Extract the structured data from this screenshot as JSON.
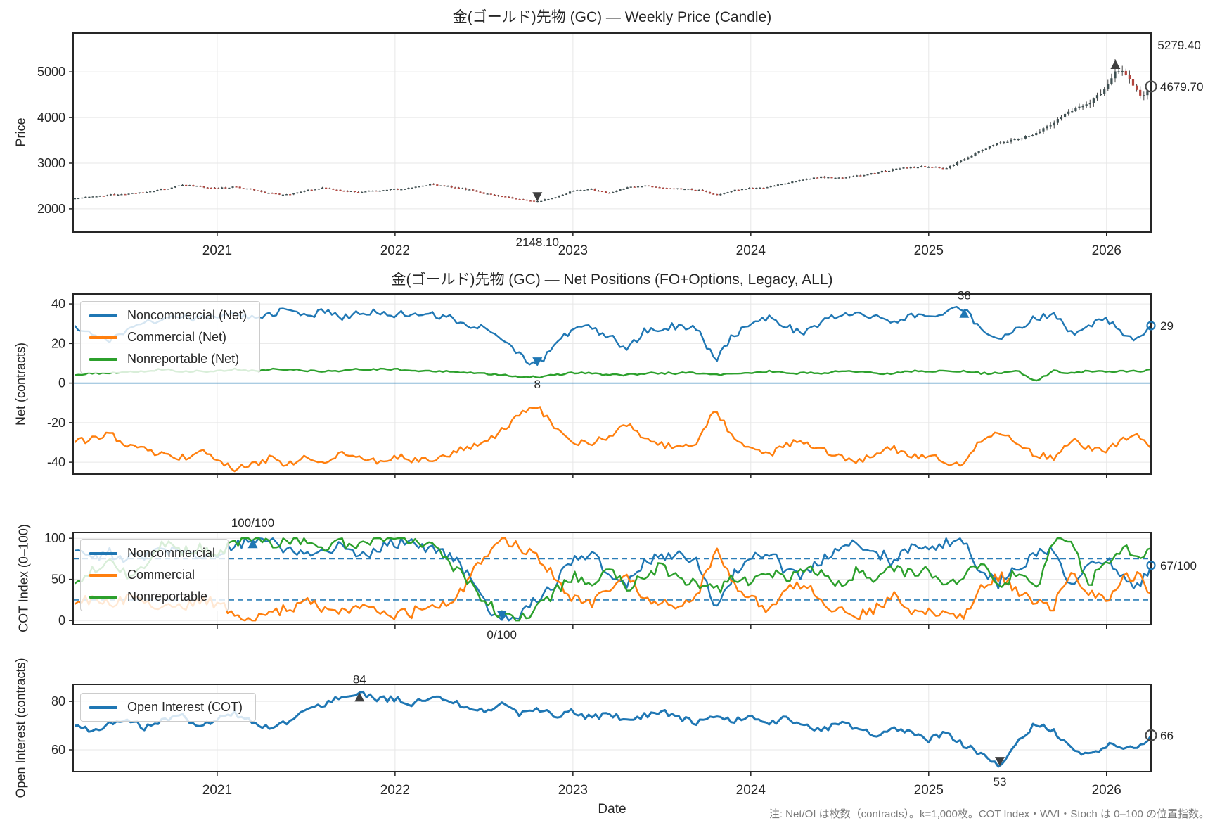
{
  "page": {
    "note": "注: Net/OI は枚数（contracts）。k=1,000枚。COT Index・WVI・Stoch は 0–100 の位置指数。"
  },
  "colors": {
    "noncommercial": "#1f77b4",
    "commercial": "#ff7f0e",
    "nonreportable": "#2ca02c",
    "open_interest": "#1f77b4",
    "candle_up": "#3f5052",
    "candle_down": "#b2453e",
    "wick": "#454545",
    "grid": "#e7e7e7",
    "spine": "#262626",
    "ann_gray": "#757575",
    "ann_blue": "#4f94c9",
    "marker_dark": "#3f3f3f",
    "marker_blue": "#1f77b4"
  },
  "axis": {
    "xlim": [
      2020.19,
      2026.25
    ],
    "xticks": [
      2021,
      2022,
      2023,
      2024,
      2025,
      2026
    ],
    "xtick_labels": [
      "2021",
      "2022",
      "2023",
      "2024",
      "2025",
      "2026"
    ]
  },
  "anchor_x": [
    2020.2,
    2020.3,
    2020.4,
    2020.5,
    2020.6,
    2020.7,
    2020.8,
    2020.9,
    2021.0,
    2021.1,
    2021.2,
    2021.3,
    2021.4,
    2021.5,
    2021.6,
    2021.7,
    2021.8,
    2021.9,
    2022.0,
    2022.1,
    2022.2,
    2022.3,
    2022.4,
    2022.5,
    2022.6,
    2022.7,
    2022.8,
    2022.9,
    2023.0,
    2023.1,
    2023.2,
    2023.3,
    2023.4,
    2023.5,
    2023.6,
    2023.7,
    2023.8,
    2023.9,
    2024.0,
    2024.1,
    2024.2,
    2024.3,
    2024.4,
    2024.5,
    2024.6,
    2024.7,
    2024.8,
    2024.9,
    2025.0,
    2025.1,
    2025.2,
    2025.3,
    2025.4,
    2025.5,
    2025.6,
    2025.7,
    2025.8,
    2025.9,
    2026.0,
    2026.05,
    2026.1,
    2026.15,
    2026.2,
    2026.25
  ],
  "chart_data": [
    {
      "id": "price",
      "type": "candlestick",
      "title": "金(ゴールド)先物 (GC) — Weekly Price (Candle)",
      "ylabel": "Price",
      "ylim": [
        1490,
        5850
      ],
      "yticks": [
        2000,
        3000,
        4000,
        5000
      ],
      "show_xticklabels": true,
      "closes": [
        2230,
        2270,
        2310,
        2330,
        2370,
        2430,
        2520,
        2490,
        2450,
        2480,
        2420,
        2330,
        2310,
        2400,
        2460,
        2400,
        2370,
        2400,
        2430,
        2460,
        2540,
        2490,
        2430,
        2340,
        2270,
        2210,
        2160,
        2260,
        2390,
        2430,
        2350,
        2460,
        2510,
        2470,
        2440,
        2420,
        2300,
        2410,
        2450,
        2480,
        2560,
        2650,
        2700,
        2670,
        2720,
        2790,
        2860,
        2910,
        2930,
        2890,
        3080,
        3300,
        3460,
        3520,
        3650,
        3880,
        4150,
        4320,
        4650,
        5050,
        5000,
        4700,
        4450,
        4679.7
      ],
      "annotations": [
        {
          "label": "5279.40",
          "x": 2026.05,
          "y": 5279.4,
          "pos": "topright",
          "marker": "tri-up",
          "color": "gray",
          "marker_color": "dark"
        },
        {
          "label": "4679.70",
          "x": "end",
          "y": 4679.7,
          "pos": "right",
          "marker": "circle",
          "color": "gray",
          "marker_color": "dark"
        },
        {
          "label": "2148.10",
          "x": 2022.8,
          "y": 2148.1,
          "pos": "below-frame",
          "marker": "tri-down",
          "color": "gray",
          "marker_color": "dark"
        }
      ]
    },
    {
      "id": "net",
      "type": "line",
      "title": "金(ゴールド)先物 (GC) — Net Positions (FO+Options, Legacy, ALL)",
      "ylabel": "Net (contracts)",
      "ylim": [
        -46,
        45
      ],
      "yticks": [
        -40,
        -20,
        0,
        20,
        40
      ],
      "zero_line": true,
      "series": [
        {
          "name": "Noncommercial (Net)",
          "color": "noncommercial",
          "jitter": 1.8,
          "values": [
            29,
            25,
            22,
            27,
            30,
            33,
            35,
            32,
            34,
            36,
            33,
            35,
            37,
            34,
            36,
            33,
            35,
            36,
            34,
            36,
            35,
            33,
            30,
            28,
            22,
            14,
            8,
            20,
            27,
            28,
            24,
            17,
            26,
            28,
            29,
            27,
            11,
            24,
            30,
            33,
            28,
            26,
            31,
            34,
            36,
            33,
            30,
            35,
            33,
            37,
            38,
            25,
            22,
            28,
            33,
            35,
            25,
            30,
            32,
            28,
            25,
            23,
            24,
            29
          ]
        },
        {
          "name": "Commercial (Net)",
          "color": "commercial",
          "jitter": 1.8,
          "values": [
            -30,
            -28,
            -26,
            -31,
            -34,
            -36,
            -38,
            -34,
            -40,
            -44,
            -41,
            -38,
            -41,
            -37,
            -39,
            -36,
            -38,
            -39,
            -37,
            -39,
            -38,
            -36,
            -33,
            -30,
            -24,
            -16,
            -11,
            -23,
            -30,
            -31,
            -27,
            -20,
            -29,
            -31,
            -32,
            -30,
            -13,
            -27,
            -33,
            -36,
            -31,
            -29,
            -34,
            -37,
            -39,
            -36,
            -33,
            -38,
            -36,
            -40,
            -41,
            -28,
            -25,
            -31,
            -36,
            -38,
            -28,
            -33,
            -35,
            -31,
            -28,
            -26,
            -27,
            -33
          ]
        },
        {
          "name": "Nonreportable (Net)",
          "color": "nonreportable",
          "jitter": 0.5,
          "values": [
            4,
            5,
            5,
            6,
            6,
            7,
            6,
            6,
            6,
            7,
            6,
            7,
            7,
            6,
            6,
            6,
            7,
            7,
            7,
            6,
            6,
            6,
            5,
            5,
            4,
            3,
            3,
            4,
            5,
            5,
            4,
            4,
            5,
            5,
            5,
            5,
            4,
            5,
            5,
            6,
            5,
            5,
            5,
            6,
            6,
            5,
            5,
            6,
            6,
            6,
            6,
            5,
            5,
            6,
            1,
            6,
            5,
            6,
            6,
            6,
            6,
            6,
            6,
            7
          ]
        }
      ],
      "annotations": [
        {
          "label": "38",
          "x": 2025.2,
          "y": 38,
          "pos": "above",
          "marker": "tri-up",
          "color": "blue",
          "marker_color": "blue"
        },
        {
          "label": "8",
          "x": 2022.8,
          "y": 8,
          "pos": "below",
          "marker": "tri-down",
          "color": "blue",
          "marker_color": "blue"
        },
        {
          "label": "29",
          "x": "end",
          "y": 29,
          "pos": "right",
          "marker": "circle",
          "color": "blue",
          "marker_color": "blue"
        }
      ]
    },
    {
      "id": "cot",
      "type": "line",
      "title": "",
      "ylabel": "COT Index (0–100)",
      "ylim": [
        -5,
        107
      ],
      "yticks": [
        0,
        50,
        100
      ],
      "thresholds": [
        25,
        75
      ],
      "clamp": [
        0,
        100
      ],
      "series": [
        {
          "name": "Noncommercial",
          "color": "noncommercial",
          "jitter": 7,
          "values": [
            85,
            78,
            82,
            75,
            80,
            88,
            83,
            78,
            80,
            92,
            100,
            97,
            85,
            80,
            85,
            90,
            82,
            85,
            95,
            92,
            85,
            80,
            60,
            20,
            0,
            8,
            25,
            45,
            75,
            80,
            60,
            45,
            70,
            78,
            80,
            70,
            15,
            55,
            75,
            85,
            60,
            55,
            75,
            88,
            95,
            85,
            70,
            90,
            85,
            95,
            100,
            55,
            45,
            65,
            80,
            85,
            40,
            65,
            75,
            62,
            50,
            45,
            48,
            67
          ]
        },
        {
          "name": "Commercial",
          "color": "commercial",
          "jitter": 7,
          "values": [
            20,
            25,
            18,
            28,
            22,
            12,
            18,
            25,
            20,
            8,
            0,
            5,
            15,
            22,
            15,
            10,
            20,
            15,
            5,
            10,
            15,
            22,
            45,
            80,
            100,
            90,
            75,
            55,
            25,
            20,
            40,
            55,
            30,
            22,
            20,
            30,
            88,
            45,
            25,
            15,
            40,
            45,
            25,
            12,
            5,
            15,
            30,
            10,
            15,
            5,
            0,
            45,
            55,
            35,
            20,
            15,
            60,
            35,
            25,
            38,
            50,
            55,
            52,
            33
          ]
        },
        {
          "name": "Nonreportable",
          "color": "nonreportable",
          "jitter": 7,
          "values": [
            45,
            60,
            75,
            55,
            70,
            95,
            85,
            90,
            80,
            95,
            100,
            90,
            100,
            95,
            85,
            95,
            90,
            100,
            95,
            100,
            90,
            70,
            50,
            25,
            5,
            0,
            15,
            35,
            55,
            45,
            60,
            40,
            55,
            65,
            50,
            45,
            35,
            55,
            45,
            60,
            50,
            65,
            55,
            45,
            60,
            50,
            65,
            55,
            60,
            45,
            55,
            70,
            40,
            60,
            35,
            100,
            100,
            45,
            70,
            80,
            90,
            85,
            80,
            88
          ]
        }
      ],
      "annotations": [
        {
          "label": "100/100",
          "x": 2021.2,
          "y": 100,
          "pos": "above-frame",
          "marker": "tri-up",
          "color": "blue",
          "marker_color": "blue"
        },
        {
          "label": "0/100",
          "x": 2022.6,
          "y": 0,
          "pos": "below-frame",
          "marker": "tri-down",
          "color": "blue",
          "marker_color": "blue"
        },
        {
          "label": "67/100",
          "x": "end",
          "y": 67,
          "pos": "right",
          "marker": "circle",
          "color": "blue",
          "marker_color": "blue"
        }
      ]
    },
    {
      "id": "oi",
      "type": "line",
      "title": "",
      "ylabel": "Open Interest (contracts)",
      "xlabel": "Date",
      "ylim": [
        51,
        87
      ],
      "yticks": [
        60,
        80
      ],
      "lw": 3,
      "show_xticklabels": true,
      "series": [
        {
          "name": "Open Interest (COT)",
          "color": "open_interest",
          "jitter": 1.2,
          "values": [
            70,
            68,
            71,
            72,
            69,
            72,
            74,
            70,
            73,
            75,
            71,
            69,
            72,
            76,
            79,
            82,
            84,
            81,
            81,
            79,
            82,
            80,
            78,
            76,
            79,
            75,
            77,
            74,
            76,
            73,
            75,
            72,
            74,
            76,
            73,
            71,
            74,
            72,
            74,
            71,
            73,
            70,
            68,
            71,
            69,
            66,
            69,
            67,
            64,
            67,
            62,
            58,
            53,
            63,
            71,
            68,
            60,
            58,
            62,
            61,
            60,
            61,
            62,
            66
          ]
        }
      ],
      "annotations": [
        {
          "label": "84",
          "x": 2021.8,
          "y": 84,
          "pos": "above",
          "marker": "tri-up",
          "color": "gray",
          "marker_color": "dark"
        },
        {
          "label": "53",
          "x": 2025.4,
          "y": 53,
          "pos": "below-frame",
          "marker": "tri-down",
          "color": "gray",
          "marker_color": "dark"
        },
        {
          "label": "66",
          "x": "end",
          "y": 66,
          "pos": "right",
          "marker": "circle",
          "color": "gray",
          "marker_color": "dark"
        }
      ]
    }
  ]
}
